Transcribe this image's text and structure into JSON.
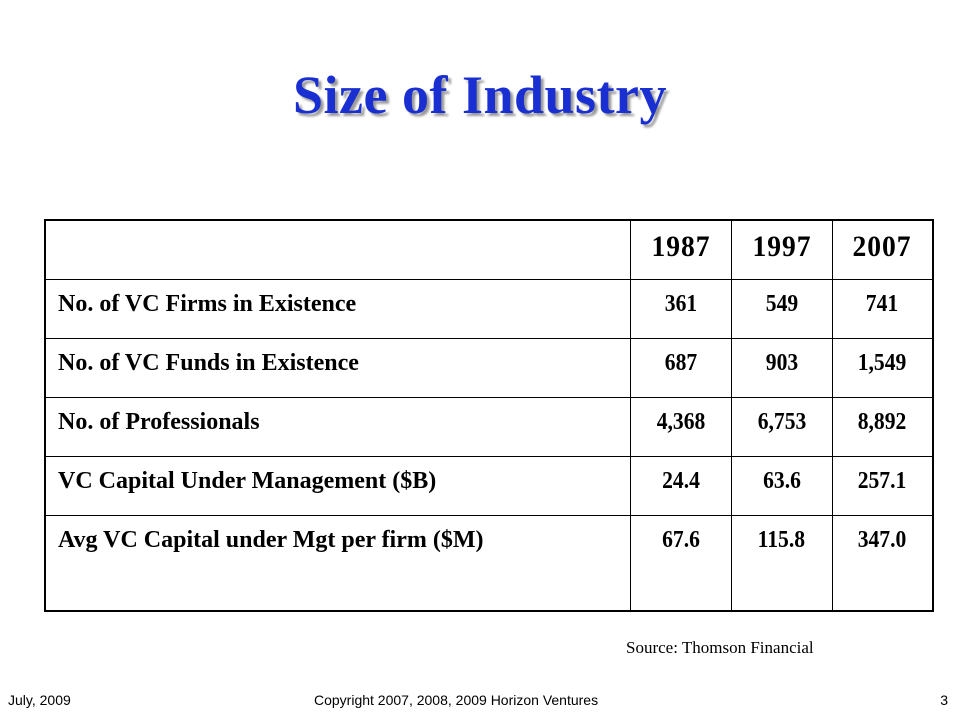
{
  "slide": {
    "title": "Size of Industry",
    "title_color": "#1a2fd1"
  },
  "table": {
    "columns": [
      "",
      "1987",
      "1997",
      "2007"
    ],
    "rows": [
      {
        "label": "No. of VC Firms in Existence",
        "values": [
          "361",
          "549",
          "741"
        ]
      },
      {
        "label": "No. of VC Funds in Existence",
        "values": [
          "687",
          "903",
          "1,549"
        ]
      },
      {
        "label": "No. of Professionals",
        "values": [
          "4,368",
          "6,753",
          "8,892"
        ]
      },
      {
        "label": "VC Capital Under Management ($B)",
        "values": [
          "24.4",
          "63.6",
          "257.1"
        ]
      },
      {
        "label": "Avg VC Capital under Mgt per firm ($M)",
        "values": [
          "67.6",
          "115.8",
          "347.0"
        ]
      }
    ]
  },
  "source": "Source: Thomson Financial",
  "footer": {
    "date": "July, 2009",
    "copyright": "Copyright 2007, 2008, 2009 Horizon Ventures",
    "page_number": "3"
  }
}
